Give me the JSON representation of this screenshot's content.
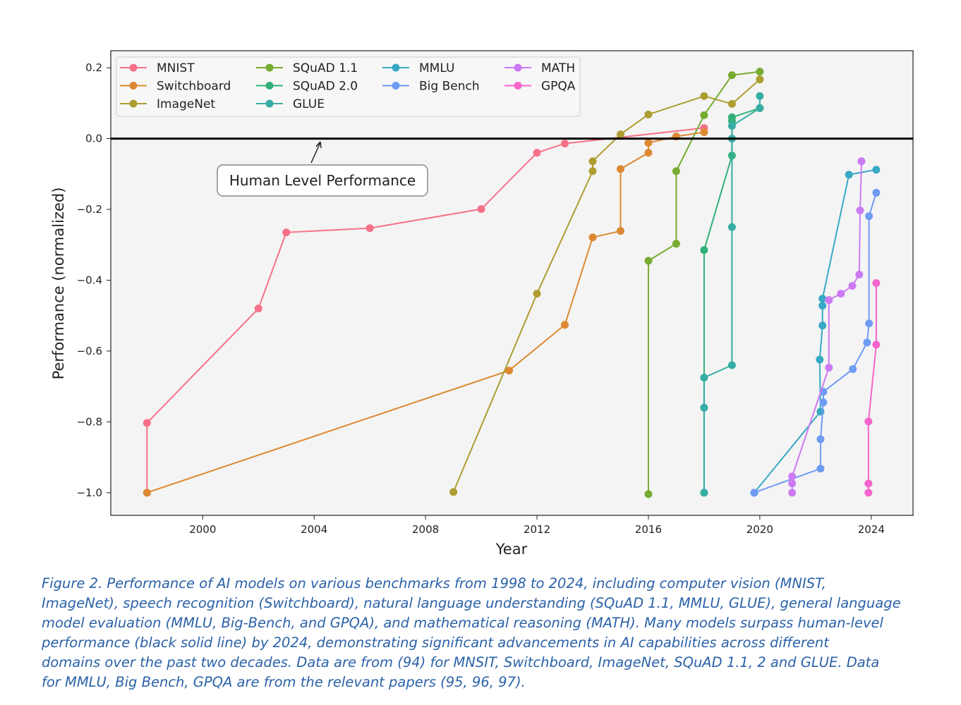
{
  "chart_data": {
    "type": "line",
    "xlabel": "Year",
    "ylabel": "Performance (normalized)",
    "xlim": [
      1996.7,
      2025.5
    ],
    "ylim": [
      -1.064,
      0.248
    ],
    "xticks": [
      2000,
      2004,
      2008,
      2012,
      2016,
      2020,
      2024
    ],
    "xtick_labels": [
      "2000",
      "2004",
      "2008",
      "2012",
      "2016",
      "2020",
      "2024"
    ],
    "yticks": [
      0.2,
      0.0,
      -0.2,
      -0.4,
      -0.6,
      -0.8,
      -1.0
    ],
    "ytick_labels": [
      "0.2",
      "0.0",
      "−0.2",
      "−0.4",
      "−0.6",
      "−0.8",
      "−1.0"
    ],
    "grid": false,
    "legend_position": "top-left",
    "reference_line": {
      "y": 0.0,
      "color": "#000000"
    },
    "annotation": {
      "text": "Human Level Performance",
      "arrow_to": [
        2015.0,
        0.0
      ]
    },
    "series": [
      {
        "name": "MNIST",
        "color": "#f77189",
        "points": [
          [
            1998,
            -1.0
          ],
          [
            1998,
            -0.803
          ],
          [
            2002,
            -0.48
          ],
          [
            2003,
            -0.265
          ],
          [
            2006,
            -0.253
          ],
          [
            2010,
            -0.199
          ],
          [
            2012,
            -0.04
          ],
          [
            2013,
            -0.014
          ],
          [
            2018,
            0.03
          ]
        ]
      },
      {
        "name": "Switchboard",
        "color": "#dc8932",
        "points": [
          [
            1998,
            -1.0
          ],
          [
            2011,
            -0.655
          ],
          [
            2013,
            -0.526
          ],
          [
            2014,
            -0.279
          ],
          [
            2015,
            -0.261
          ],
          [
            2015,
            -0.086
          ],
          [
            2016,
            -0.04
          ],
          [
            2016,
            -0.012
          ],
          [
            2017,
            0.006
          ],
          [
            2018,
            0.018
          ]
        ]
      },
      {
        "name": "ImageNet",
        "color": "#ae9d31",
        "points": [
          [
            2009,
            -0.998
          ],
          [
            2012,
            -0.438
          ],
          [
            2014,
            -0.092
          ],
          [
            2014,
            -0.064
          ],
          [
            2015,
            0.012
          ],
          [
            2016,
            0.068
          ],
          [
            2018,
            0.12
          ],
          [
            2019,
            0.098
          ],
          [
            2020,
            0.167
          ]
        ]
      },
      {
        "name": "SQuAD 1.1",
        "color": "#77ab31",
        "points": [
          [
            2016,
            -1.004
          ],
          [
            2016,
            -0.345
          ],
          [
            2017,
            -0.297
          ],
          [
            2017,
            -0.092
          ],
          [
            2018,
            0.066
          ],
          [
            2019,
            0.179
          ],
          [
            2020,
            0.189
          ]
        ]
      },
      {
        "name": "SQuAD 2.0",
        "color": "#33b07a",
        "points": [
          [
            2018,
            -1.0
          ],
          [
            2018,
            -0.315
          ],
          [
            2019,
            -0.048
          ],
          [
            2019,
            0.05
          ],
          [
            2019,
            0.06
          ],
          [
            2020,
            0.086
          ]
        ]
      },
      {
        "name": "GLUE",
        "color": "#36ada4",
        "points": [
          [
            2018,
            -1.0
          ],
          [
            2018,
            -0.76
          ],
          [
            2018,
            -0.675
          ],
          [
            2019,
            -0.64
          ],
          [
            2019,
            -0.25
          ],
          [
            2019,
            0.0
          ],
          [
            2019,
            0.036
          ],
          [
            2020,
            0.086
          ],
          [
            2020,
            0.12
          ]
        ]
      },
      {
        "name": "MMLU",
        "color": "#38a9c5",
        "points": [
          [
            2019.8,
            -1.0
          ],
          [
            2022.18,
            -0.771
          ],
          [
            2022.15,
            -0.624
          ],
          [
            2022.25,
            -0.528
          ],
          [
            2022.25,
            -0.472
          ],
          [
            2022.25,
            -0.452
          ],
          [
            2023.2,
            -0.102
          ],
          [
            2024.18,
            -0.088
          ]
        ]
      },
      {
        "name": "Big Bench",
        "color": "#6e9bf4",
        "points": [
          [
            2019.8,
            -1.0
          ],
          [
            2022.18,
            -0.932
          ],
          [
            2022.18,
            -0.849
          ],
          [
            2022.28,
            -0.745
          ],
          [
            2022.28,
            -0.715
          ],
          [
            2023.34,
            -0.651
          ],
          [
            2023.85,
            -0.576
          ],
          [
            2023.92,
            -0.522
          ],
          [
            2023.92,
            -0.219
          ],
          [
            2024.18,
            -0.153
          ]
        ]
      },
      {
        "name": "MATH",
        "color": "#cc7af4",
        "points": [
          [
            2021.16,
            -1.0
          ],
          [
            2021.16,
            -0.974
          ],
          [
            2021.16,
            -0.954
          ],
          [
            2022.48,
            -0.647
          ],
          [
            2022.48,
            -0.456
          ],
          [
            2022.91,
            -0.438
          ],
          [
            2023.32,
            -0.416
          ],
          [
            2023.57,
            -0.384
          ],
          [
            2023.6,
            -0.203
          ],
          [
            2023.65,
            -0.064
          ]
        ]
      },
      {
        "name": "GPQA",
        "color": "#f565cc",
        "points": [
          [
            2023.9,
            -1.0
          ],
          [
            2023.9,
            -0.974
          ],
          [
            2023.9,
            -0.799
          ],
          [
            2024.18,
            -0.582
          ],
          [
            2024.18,
            -0.408
          ]
        ]
      }
    ]
  },
  "caption_lines": [
    "Figure 2. Performance of AI models on various benchmarks from 1998 to 2024, including computer vision (MNIST,",
    "ImageNet), speech recognition (Switchboard), natural language understanding (SQuAD 1.1, MMLU, GLUE), general language",
    "model evaluation (MMLU, Big-Bench, and GPQA), and mathematical reasoning (MATH). Many models surpass human-level",
    "performance (black solid line) by 2024, demonstrating significant advancements in AI capabilities across different",
    "domains over the past two decades. Data are from (94) for MNSIT, Switchboard, ImageNet, SQuAD 1.1, 2 and GLUE. Data",
    "for MMLU, Big Bench, GPQA are from the relevant papers (95, 96, 97)."
  ]
}
